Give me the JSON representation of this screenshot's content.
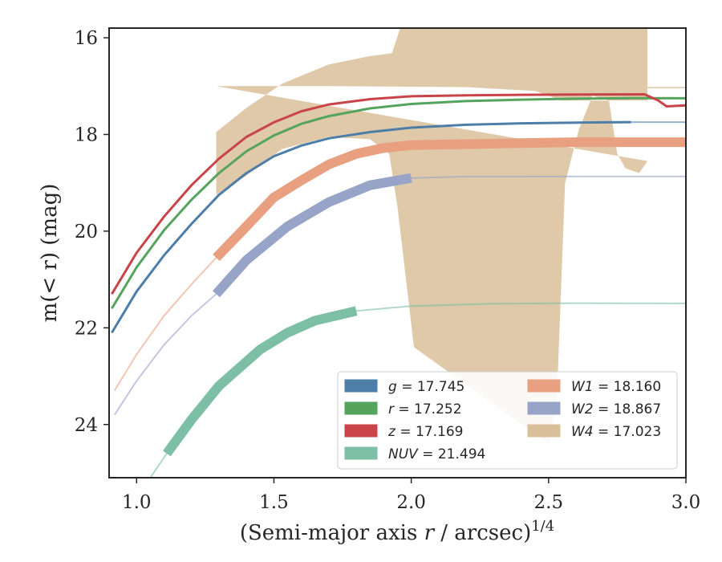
{
  "chart_data": {
    "type": "line",
    "xlabel_main": "(Semi-major axis ",
    "xlabel_var": "r",
    "xlabel_rest": " / arcsec)",
    "xlabel_sup": "1/4",
    "ylabel": "m(< r) (mag)",
    "xlim": [
      0.9,
      3.0
    ],
    "ylim": [
      25.1,
      15.8
    ],
    "y_inverted": true,
    "xticks": [
      "1.0",
      "1.5",
      "2.0",
      "2.5",
      "3.0"
    ],
    "xtick_values": [
      1.0,
      1.5,
      2.0,
      2.5,
      3.0
    ],
    "yticks": [
      "16",
      "18",
      "20",
      "22",
      "24"
    ],
    "ytick_values": [
      16,
      18,
      20,
      22,
      24
    ],
    "legend_position": "lower-right",
    "legend": [
      {
        "band": "g",
        "value": "17.745",
        "color": "#4c7ea8"
      },
      {
        "band": "r",
        "value": "17.252",
        "color": "#55a45e"
      },
      {
        "band": "z",
        "value": "17.169",
        "color": "#c94448"
      },
      {
        "band": "NUV",
        "value": "21.494",
        "color": "#7dbfa6"
      },
      {
        "band": "W1",
        "value": "18.160",
        "color": "#e8a080"
      },
      {
        "band": "W2",
        "value": "18.867",
        "color": "#97a4c8"
      },
      {
        "band": "W4",
        "value": "17.023",
        "color": "#d9c09a"
      }
    ],
    "series": [
      {
        "name": "W4",
        "kind": "band",
        "color": "#d9c09a",
        "upper": [
          [
            1.29,
            17.95
          ],
          [
            1.4,
            17.45
          ],
          [
            1.53,
            16.95
          ],
          [
            1.7,
            16.55
          ],
          [
            1.85,
            16.38
          ],
          [
            1.93,
            16.32
          ],
          [
            1.96,
            15.8
          ],
          [
            2.86,
            15.8
          ],
          [
            2.86,
            17.3
          ],
          [
            2.75,
            17.3
          ],
          [
            2.55,
            17.3
          ],
          [
            2.45,
            17.1
          ],
          [
            2.2,
            17.02
          ],
          [
            1.7,
            17.0
          ],
          [
            1.29,
            17.0
          ]
        ],
        "lower": [
          [
            1.29,
            19.25
          ],
          [
            1.4,
            18.85
          ],
          [
            1.53,
            18.3
          ],
          [
            1.7,
            18.05
          ],
          [
            1.85,
            18.1
          ],
          [
            1.92,
            18.4
          ],
          [
            1.95,
            19.5
          ],
          [
            2.01,
            22.4
          ],
          [
            2.5,
            24.4
          ],
          [
            2.53,
            23.5
          ],
          [
            2.56,
            19.0
          ],
          [
            2.61,
            17.9
          ],
          [
            2.66,
            17.2
          ],
          [
            2.72,
            17.3
          ],
          [
            2.75,
            18.4
          ],
          [
            2.78,
            18.7
          ],
          [
            2.83,
            18.8
          ],
          [
            2.86,
            18.55
          ]
        ]
      },
      {
        "name": "W4-tail",
        "kind": "line",
        "color": "#d9c09a",
        "points": [
          [
            2.86,
            17.03
          ],
          [
            3.0,
            17.03
          ]
        ]
      },
      {
        "name": "W1",
        "kind": "profile",
        "color": "#e8a080",
        "points": [
          [
            0.92,
            23.3
          ],
          [
            1.0,
            22.55
          ],
          [
            1.1,
            21.75
          ],
          [
            1.2,
            21.1
          ],
          [
            1.29,
            20.55
          ],
          [
            1.4,
            19.9
          ],
          [
            1.5,
            19.3
          ],
          [
            1.6,
            18.95
          ],
          [
            1.7,
            18.62
          ],
          [
            1.8,
            18.4
          ],
          [
            1.9,
            18.28
          ],
          [
            2.0,
            18.22
          ],
          [
            2.2,
            18.2
          ],
          [
            2.4,
            18.18
          ],
          [
            2.6,
            18.16
          ],
          [
            2.8,
            18.16
          ],
          [
            3.0,
            18.16
          ]
        ],
        "thick_from": 1.29
      },
      {
        "name": "W2",
        "kind": "profile",
        "color": "#97a4c8",
        "points": [
          [
            0.92,
            23.8
          ],
          [
            1.0,
            23.1
          ],
          [
            1.1,
            22.35
          ],
          [
            1.2,
            21.75
          ],
          [
            1.29,
            21.3
          ],
          [
            1.4,
            20.6
          ],
          [
            1.55,
            19.9
          ],
          [
            1.7,
            19.4
          ],
          [
            1.85,
            19.05
          ],
          [
            2.0,
            18.9
          ],
          [
            2.2,
            18.87
          ],
          [
            2.4,
            18.87
          ],
          [
            2.6,
            18.867
          ],
          [
            3.0,
            18.867
          ]
        ],
        "thick_from": 1.29,
        "thick_to": 2.0
      },
      {
        "name": "NUV",
        "kind": "profile",
        "color": "#7dbfa6",
        "points": [
          [
            1.0,
            25.4
          ],
          [
            1.05,
            25.1
          ],
          [
            1.11,
            24.6
          ],
          [
            1.2,
            23.9
          ],
          [
            1.3,
            23.2
          ],
          [
            1.45,
            22.45
          ],
          [
            1.55,
            22.1
          ],
          [
            1.65,
            21.85
          ],
          [
            1.8,
            21.65
          ],
          [
            2.0,
            21.55
          ],
          [
            2.3,
            21.5
          ],
          [
            2.6,
            21.49
          ],
          [
            3.0,
            21.494
          ]
        ],
        "thick_from": 1.11,
        "thick_to": 1.8
      },
      {
        "name": "g",
        "kind": "profile",
        "color": "#4c7ea8",
        "points": [
          [
            0.91,
            22.1
          ],
          [
            1.0,
            21.25
          ],
          [
            1.1,
            20.5
          ],
          [
            1.2,
            19.85
          ],
          [
            1.3,
            19.25
          ],
          [
            1.4,
            18.8
          ],
          [
            1.5,
            18.45
          ],
          [
            1.6,
            18.23
          ],
          [
            1.7,
            18.08
          ],
          [
            1.85,
            17.95
          ],
          [
            2.0,
            17.86
          ],
          [
            2.2,
            17.8
          ],
          [
            2.4,
            17.77
          ],
          [
            2.6,
            17.755
          ],
          [
            2.8,
            17.745
          ],
          [
            3.0,
            17.745
          ]
        ],
        "thick_from": 0.91,
        "thick_to": 2.93
      },
      {
        "name": "r",
        "kind": "profile",
        "color": "#55a45e",
        "points": [
          [
            0.91,
            21.6
          ],
          [
            1.0,
            20.75
          ],
          [
            1.1,
            19.98
          ],
          [
            1.2,
            19.35
          ],
          [
            1.3,
            18.8
          ],
          [
            1.4,
            18.35
          ],
          [
            1.5,
            18.02
          ],
          [
            1.6,
            17.78
          ],
          [
            1.7,
            17.62
          ],
          [
            1.85,
            17.46
          ],
          [
            2.0,
            17.37
          ],
          [
            2.2,
            17.31
          ],
          [
            2.4,
            17.28
          ],
          [
            2.6,
            17.26
          ],
          [
            2.8,
            17.25
          ],
          [
            3.0,
            17.252
          ]
        ]
      },
      {
        "name": "z",
        "kind": "profile",
        "color": "#c94448",
        "points": [
          [
            0.91,
            21.3
          ],
          [
            1.0,
            20.45
          ],
          [
            1.1,
            19.7
          ],
          [
            1.2,
            19.05
          ],
          [
            1.3,
            18.5
          ],
          [
            1.4,
            18.05
          ],
          [
            1.5,
            17.75
          ],
          [
            1.6,
            17.52
          ],
          [
            1.7,
            17.38
          ],
          [
            1.85,
            17.27
          ],
          [
            2.0,
            17.21
          ],
          [
            2.2,
            17.19
          ],
          [
            2.4,
            17.18
          ],
          [
            2.6,
            17.175
          ],
          [
            2.85,
            17.17
          ],
          [
            2.9,
            17.3
          ],
          [
            2.93,
            17.42
          ],
          [
            3.0,
            17.4
          ]
        ]
      }
    ]
  }
}
